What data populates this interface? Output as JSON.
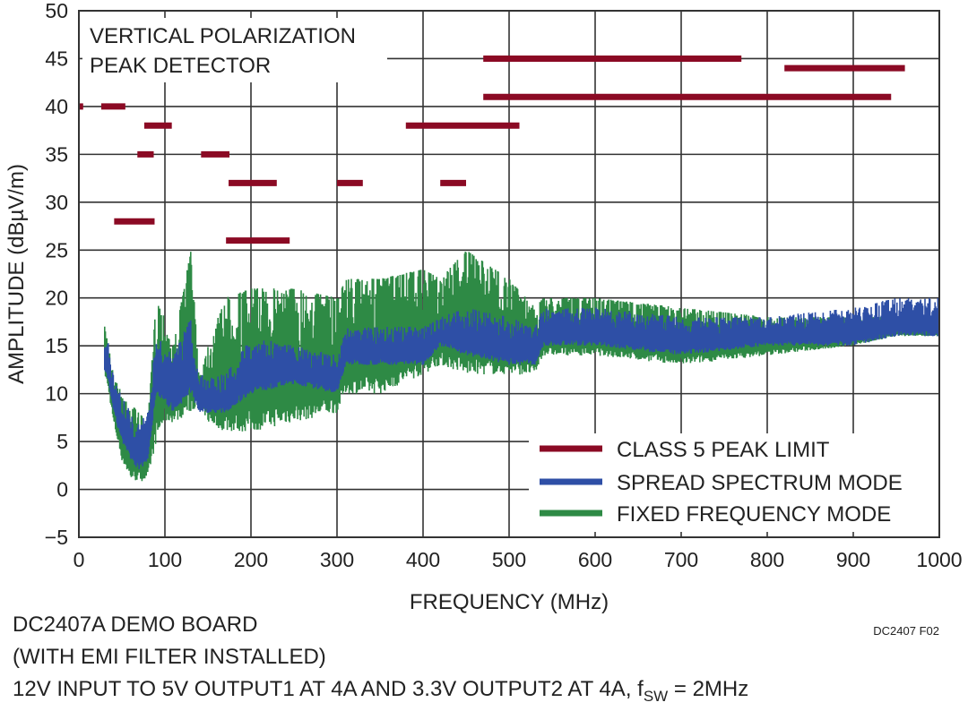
{
  "chart_data": {
    "type": "line",
    "xlabel": "FREQUENCY (MHz)",
    "ylabel": "AMPLITUDE (dBµV/m)",
    "xlim": [
      0,
      1000
    ],
    "ylim": [
      -5,
      50
    ],
    "xticks": [
      0,
      100,
      200,
      300,
      400,
      500,
      600,
      700,
      800,
      900,
      1000
    ],
    "yticks": [
      -5,
      0,
      5,
      10,
      15,
      20,
      25,
      30,
      35,
      40,
      45,
      50
    ],
    "grid": true,
    "legend_position": "bottom-right",
    "annotation_lines": [
      "VERTICAL POLARIZATION",
      "PEAK DETECTOR"
    ],
    "series": [
      {
        "name": "CLASS 5 PEAK LIMIT",
        "color": "#8b0a24",
        "segments": [
          {
            "x": [
              0.15,
              5
            ],
            "y": 40
          },
          {
            "x": [
              26,
              54
            ],
            "y": 40
          },
          {
            "x": [
              41,
              88
            ],
            "y": 28
          },
          {
            "x": [
              68,
              87
            ],
            "y": 35
          },
          {
            "x": [
              76,
              108
            ],
            "y": 38
          },
          {
            "x": [
              142,
              175
            ],
            "y": 35
          },
          {
            "x": [
              174,
              230
            ],
            "y": 32
          },
          {
            "x": [
              171,
              245
            ],
            "y": 26
          },
          {
            "x": [
              300,
              330
            ],
            "y": 32
          },
          {
            "x": [
              380,
              512
            ],
            "y": 38
          },
          {
            "x": [
              420,
              450
            ],
            "y": 32
          },
          {
            "x": [
              470,
              770
            ],
            "y": 45
          },
          {
            "x": [
              470,
              944
            ],
            "y": 41
          },
          {
            "x": [
              820,
              960
            ],
            "y": 44
          }
        ]
      },
      {
        "name": "SPREAD SPECTRUM MODE",
        "color": "#2e4fa6",
        "x": [
          30,
          35,
          40,
          50,
          60,
          70,
          80,
          90,
          100,
          110,
          130,
          140,
          150,
          170,
          200,
          250,
          300,
          310,
          350,
          400,
          420,
          450,
          500,
          530,
          540,
          600,
          700,
          800,
          900,
          950,
          1000
        ],
        "low": [
          12,
          11,
          8,
          5,
          3,
          2,
          3,
          10,
          9,
          8,
          10,
          8,
          8,
          8,
          10,
          11,
          10,
          13,
          13,
          13,
          15,
          14,
          13,
          13,
          15,
          15,
          14,
          15,
          15,
          16,
          16
        ],
        "high": [
          17,
          15,
          12,
          10,
          8,
          7,
          8,
          16,
          15,
          14,
          18,
          12,
          12,
          12,
          16,
          15,
          14,
          17,
          17,
          17,
          18,
          19,
          18,
          17,
          19,
          19,
          18,
          18,
          19,
          20,
          20
        ]
      },
      {
        "name": "FIXED FREQUENCY MODE",
        "color": "#2e8a45",
        "x": [
          30,
          35,
          40,
          50,
          60,
          70,
          80,
          90,
          100,
          110,
          130,
          140,
          150,
          170,
          200,
          250,
          300,
          310,
          350,
          400,
          420,
          450,
          500,
          530,
          540,
          600,
          700,
          800,
          900,
          950,
          1000
        ],
        "low": [
          12,
          10,
          7,
          3,
          1,
          0.8,
          1,
          5,
          7,
          7,
          8,
          9,
          7,
          6,
          6,
          7,
          8,
          10,
          10,
          12,
          13,
          12,
          12,
          12,
          14,
          14,
          13,
          14,
          15,
          16,
          16
        ],
        "high": [
          17,
          15,
          12,
          10,
          9,
          8,
          7,
          20,
          18,
          15,
          25,
          12,
          15,
          20,
          21,
          21,
          20,
          22,
          22,
          23,
          22,
          25,
          22,
          19,
          20,
          20,
          19,
          18,
          18,
          18,
          17
        ]
      }
    ]
  },
  "footer": {
    "lines": [
      "DC2407A DEMO BOARD",
      "(WITH EMI FILTER INSTALLED)",
      "12V INPUT TO 5V OUTPUT1 AT 4A AND 3.3V OUTPUT2 AT 4A, f",
      "SW",
      " = 2MHz"
    ],
    "figure_id": "DC2407 F02"
  }
}
